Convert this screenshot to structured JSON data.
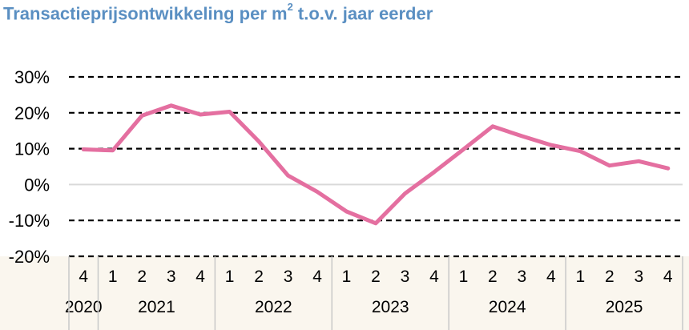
{
  "title": {
    "text_pre": "Transactieprijsontwikkeling per m",
    "superscript": "2",
    "text_post": " t.o.v. jaar eerder",
    "color": "#5a8fc2"
  },
  "chart_data": {
    "type": "line",
    "title": "Transactieprijsontwikkeling per m² t.o.v. jaar eerder",
    "xlabel": "",
    "ylabel": "",
    "ylim": [
      -20,
      30
    ],
    "y_ticks": [
      30,
      20,
      10,
      0,
      -10,
      -20
    ],
    "y_tick_labels": [
      "30%",
      "20%",
      "10%",
      "0%",
      "-10%",
      "-20%"
    ],
    "grid": "dashed horizontal",
    "line_color": "#e46fa0",
    "years": [
      {
        "label": "2020",
        "quarters": [
          "4"
        ]
      },
      {
        "label": "2021",
        "quarters": [
          "1",
          "2",
          "3",
          "4"
        ]
      },
      {
        "label": "2022",
        "quarters": [
          "1",
          "2",
          "3",
          "4"
        ]
      },
      {
        "label": "2023",
        "quarters": [
          "1",
          "2",
          "3",
          "4"
        ]
      },
      {
        "label": "2024",
        "quarters": [
          "1",
          "2",
          "3",
          "4"
        ]
      },
      {
        "label": "2025",
        "quarters": [
          "1",
          "2",
          "3",
          "4"
        ]
      }
    ],
    "categories": [
      "2020 Q4",
      "2021 Q1",
      "2021 Q2",
      "2021 Q3",
      "2021 Q4",
      "2022 Q1",
      "2022 Q2",
      "2022 Q3",
      "2022 Q4",
      "2023 Q1",
      "2023 Q2",
      "2023 Q3",
      "2023 Q4",
      "2024 Q1",
      "2024 Q2",
      "2024 Q3",
      "2024 Q4",
      "2025 Q1",
      "2025 Q2",
      "2025 Q3",
      "2025 Q4"
    ],
    "values": [
      9.8,
      9.5,
      19.2,
      22.0,
      19.5,
      20.3,
      12.0,
      2.5,
      -2.0,
      -7.5,
      -10.8,
      -2.5,
      3.5,
      9.8,
      16.2,
      13.5,
      11.0,
      9.3,
      5.3,
      6.5,
      4.5
    ]
  }
}
